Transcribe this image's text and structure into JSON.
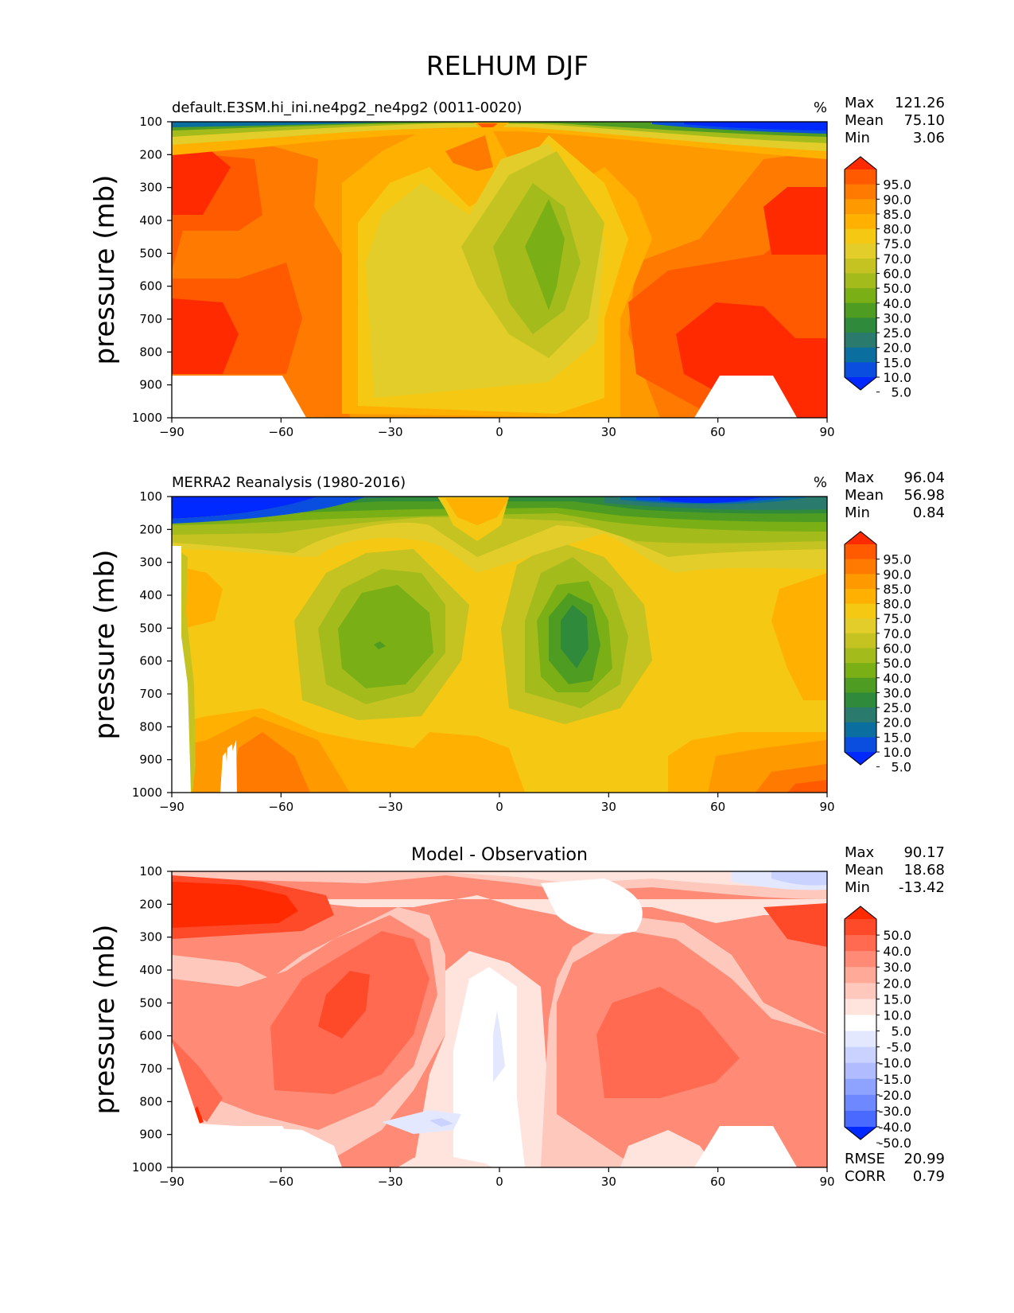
{
  "figure": {
    "title": "RELHUM DJF"
  },
  "chart_data": [
    {
      "type": "contour",
      "title": "default.E3SM.hi_ini.ne4pg2_ne4pg2 (0011-0020)",
      "units": "%",
      "ylabel": "pressure (mb)",
      "xlim": [
        -90,
        90
      ],
      "ylim": [
        1000,
        100
      ],
      "xticks": [
        "−90",
        "−60",
        "−30",
        "0",
        "30",
        "60",
        "90"
      ],
      "yticks": [
        "100",
        "200",
        "300",
        "400",
        "500",
        "600",
        "700",
        "800",
        "900",
        "1000"
      ],
      "stats": {
        "max_label": "Max",
        "max": "121.26",
        "mean_label": "Mean",
        "mean": "75.10",
        "min_label": "Min",
        "min": "3.06"
      },
      "colorbar": {
        "labels": [
          "95.0",
          "90.0",
          "85.0",
          "80.0",
          "75.0",
          "70.0",
          "60.0",
          "50.0",
          "40.0",
          "30.0",
          "25.0",
          "20.0",
          "15.0",
          "10.0",
          "5.0"
        ],
        "colors": [
          "#ff2a00",
          "#ff5a00",
          "#ff7a00",
          "#ff9900",
          "#ffb000",
          "#f5c814",
          "#e2cd2a",
          "#c4c322",
          "#a4bb1c",
          "#7aaf16",
          "#4e9c22",
          "#2f8a3c",
          "#2b7a6e",
          "#0a6e9e",
          "#0a4ee0",
          "#0029ff"
        ]
      }
    },
    {
      "type": "contour",
      "title": "MERRA2 Reanalysis (1980-2016)",
      "units": "%",
      "ylabel": "pressure (mb)",
      "xlim": [
        -90,
        90
      ],
      "ylim": [
        1000,
        100
      ],
      "xticks": [
        "−90",
        "−60",
        "−30",
        "0",
        "30",
        "60",
        "90"
      ],
      "yticks": [
        "100",
        "200",
        "300",
        "400",
        "500",
        "600",
        "700",
        "800",
        "900",
        "1000"
      ],
      "stats": {
        "max_label": "Max",
        "max": "96.04",
        "mean_label": "Mean",
        "mean": "56.98",
        "min_label": "Min",
        "min": "0.84"
      },
      "colorbar": {
        "labels": [
          "95.0",
          "90.0",
          "85.0",
          "80.0",
          "75.0",
          "70.0",
          "60.0",
          "50.0",
          "40.0",
          "30.0",
          "25.0",
          "20.0",
          "15.0",
          "10.0",
          "5.0"
        ],
        "colors": [
          "#ff2a00",
          "#ff5a00",
          "#ff7a00",
          "#ff9900",
          "#ffb000",
          "#f5c814",
          "#e2cd2a",
          "#c4c322",
          "#a4bb1c",
          "#7aaf16",
          "#4e9c22",
          "#2f8a3c",
          "#2b7a6e",
          "#0a6e9e",
          "#0a4ee0",
          "#0029ff"
        ]
      }
    },
    {
      "type": "contour",
      "title": "Model - Observation",
      "ylabel": "pressure (mb)",
      "xlim": [
        -90,
        90
      ],
      "ylim": [
        1000,
        100
      ],
      "xticks": [
        "−90",
        "−60",
        "−30",
        "0",
        "30",
        "60",
        "90"
      ],
      "yticks": [
        "100",
        "200",
        "300",
        "400",
        "500",
        "600",
        "700",
        "800",
        "900",
        "1000"
      ],
      "stats": {
        "max_label": "Max",
        "max": "90.17",
        "mean_label": "Mean",
        "mean": "18.68",
        "min_label": "Min",
        "min": "-13.42"
      },
      "metrics": {
        "rmse_label": "RMSE",
        "rmse": "20.99",
        "corr_label": "CORR",
        "corr": "0.79"
      },
      "colorbar": {
        "labels": [
          "50.0",
          "40.0",
          "30.0",
          "20.0",
          "15.0",
          "10.0",
          "5.0",
          "-5.0",
          "-10.0",
          "-15.0",
          "-20.0",
          "-30.0",
          "-40.0",
          "-50.0"
        ],
        "colors": [
          "#ff2a00",
          "#ff4a2a",
          "#ff6a50",
          "#ff8a76",
          "#ffaa98",
          "#ffc8bc",
          "#ffe4de",
          "#ffffff",
          "#e4e8ff",
          "#cad2ff",
          "#b0bcff",
          "#8ea2ff",
          "#6e88ff",
          "#4a6aff",
          "#0029ff"
        ]
      }
    }
  ]
}
